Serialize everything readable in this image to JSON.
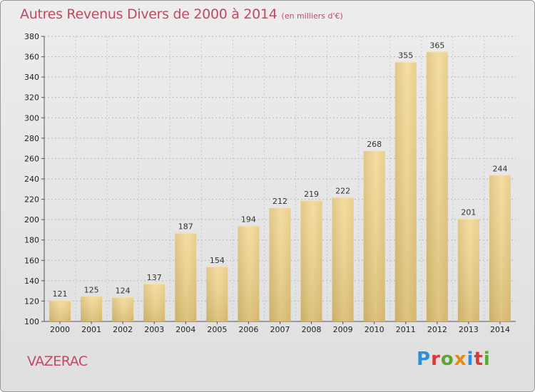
{
  "chart_data": {
    "type": "bar",
    "title": "Autres Revenus Divers de 2000 à 2014",
    "subtitle": "(en milliers d'€)",
    "categories": [
      "2000",
      "2001",
      "2002",
      "2003",
      "2004",
      "2005",
      "2006",
      "2007",
      "2008",
      "2009",
      "2010",
      "2011",
      "2012",
      "2013",
      "2014"
    ],
    "values": [
      121,
      125,
      124,
      137,
      187,
      154,
      194,
      212,
      219,
      222,
      268,
      355,
      365,
      201,
      244
    ],
    "ylim": [
      100,
      380
    ],
    "yticks": [
      100,
      120,
      140,
      160,
      180,
      200,
      220,
      240,
      260,
      280,
      300,
      320,
      340,
      360,
      380
    ],
    "grid": true,
    "bar_color": "#f0d28a",
    "title_color": "#c04a63"
  },
  "location": "VAZERAC",
  "brand": {
    "letters": [
      {
        "char": "P",
        "color": "#2f8fd6"
      },
      {
        "char": "r",
        "color": "#d43a3a"
      },
      {
        "char": "o",
        "color": "#5aa832"
      },
      {
        "char": "x",
        "color": "#e38a16"
      },
      {
        "char": "i",
        "color": "#2f8fd6"
      },
      {
        "char": "t",
        "color": "#d43a3a"
      },
      {
        "char": "i",
        "color": "#5aa832"
      }
    ]
  }
}
